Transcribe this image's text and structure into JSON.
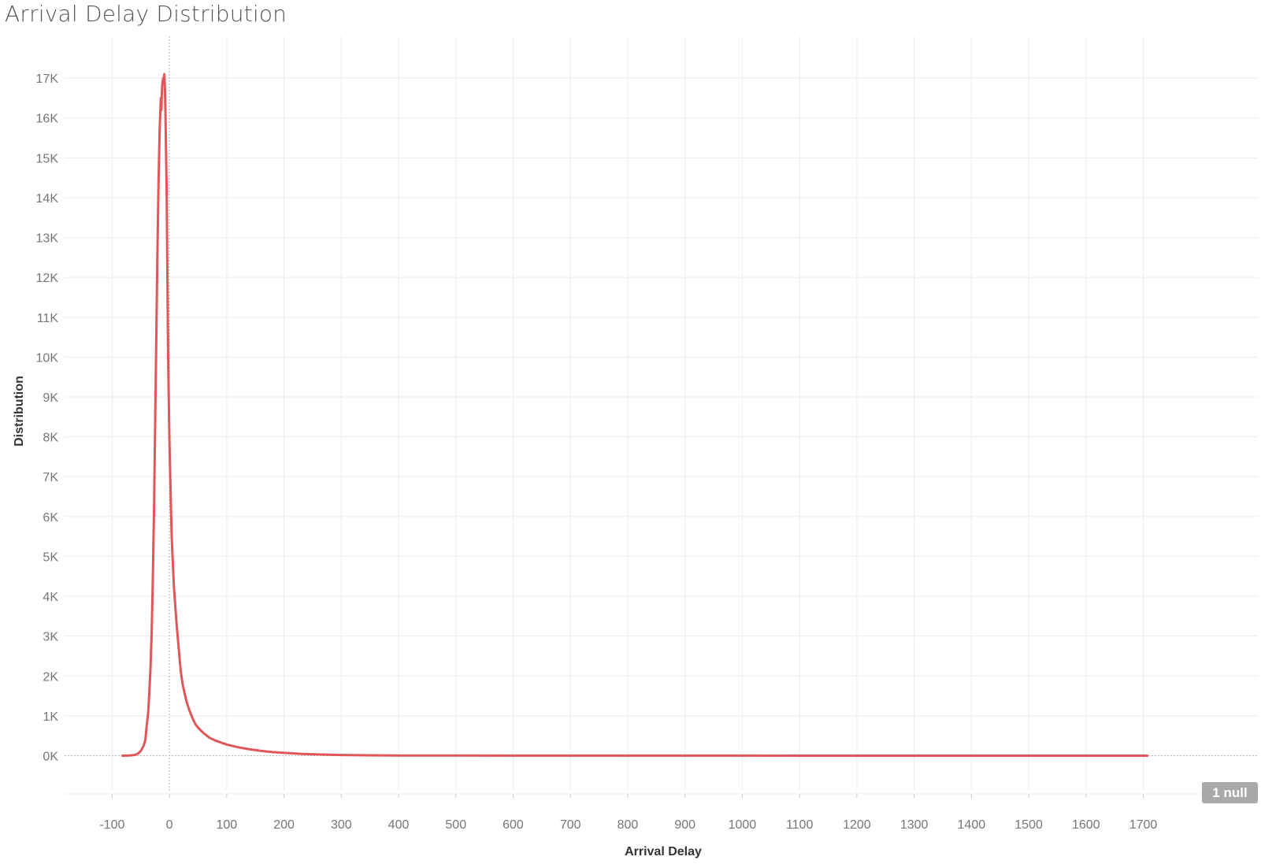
{
  "title": "Arrival Delay Distribution",
  "null_badge": "1 null",
  "colors": {
    "line": "#e15759",
    "grid": "#ececec",
    "zero_line": "#b8b8b8",
    "tick_text": "#767676",
    "axis_title": "#333333",
    "badge_bg": "#a9a9a9",
    "badge_text": "#ffffff"
  },
  "chart_data": {
    "type": "line",
    "title": "Arrival Delay Distribution",
    "xlabel": "Arrival Delay",
    "ylabel": "Distribution",
    "xlim": [
      -183,
      1900
    ],
    "ylim": [
      -880,
      18050
    ],
    "grid": true,
    "x_ticks": [
      -100,
      0,
      100,
      200,
      300,
      400,
      500,
      600,
      700,
      800,
      900,
      1000,
      1100,
      1200,
      1300,
      1400,
      1500,
      1600,
      1700
    ],
    "x_tick_labels": [
      "-100",
      "0",
      "100",
      "200",
      "300",
      "400",
      "500",
      "600",
      "700",
      "800",
      "900",
      "1000",
      "1100",
      "1200",
      "1300",
      "1400",
      "1500",
      "1600",
      "1700"
    ],
    "y_ticks": [
      0,
      1000,
      2000,
      3000,
      4000,
      5000,
      6000,
      7000,
      8000,
      9000,
      10000,
      11000,
      12000,
      13000,
      14000,
      15000,
      16000,
      17000
    ],
    "y_tick_labels": [
      "0K",
      "1K",
      "2K",
      "3K",
      "4K",
      "5K",
      "6K",
      "7K",
      "8K",
      "9K",
      "10K",
      "11K",
      "12K",
      "13K",
      "14K",
      "15K",
      "16K",
      "17K"
    ],
    "series": [
      {
        "x": [
          -82,
          -70,
          -60,
          -55,
          -50,
          -45,
          -42,
          -40,
          -37,
          -35,
          -33,
          -31,
          -29,
          -27,
          -25,
          -23,
          -21,
          -19,
          -17,
          -15,
          -14,
          -13,
          -12,
          -11,
          -10,
          -9,
          -8,
          -7,
          -6,
          -5,
          -4,
          -3,
          -2,
          -1,
          0,
          2,
          4,
          6,
          8,
          10,
          12,
          15,
          18,
          20,
          23,
          26,
          30,
          35,
          40,
          45,
          50,
          60,
          70,
          80,
          90,
          100,
          120,
          140,
          160,
          180,
          200,
          230,
          260,
          300,
          350,
          400,
          500,
          600,
          800,
          1000,
          1200,
          1400,
          1600,
          1707
        ],
        "y": [
          0,
          5,
          20,
          50,
          120,
          250,
          400,
          700,
          1100,
          1600,
          2200,
          3100,
          4400,
          6100,
          8200,
          10400,
          12500,
          14400,
          15700,
          16500,
          16200,
          16700,
          16900,
          17000,
          16950,
          17100,
          16800,
          16200,
          15300,
          14300,
          12800,
          11200,
          9800,
          8800,
          7900,
          6600,
          5500,
          4800,
          4200,
          3800,
          3400,
          2900,
          2400,
          2100,
          1800,
          1600,
          1350,
          1130,
          950,
          800,
          700,
          560,
          450,
          380,
          330,
          280,
          210,
          160,
          120,
          90,
          70,
          45,
          30,
          18,
          10,
          6,
          3,
          2,
          1,
          1,
          0,
          0,
          0,
          0
        ]
      }
    ]
  }
}
